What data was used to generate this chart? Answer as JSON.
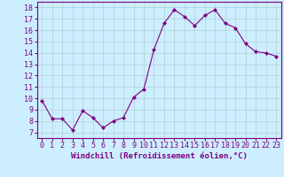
{
  "x": [
    0,
    1,
    2,
    3,
    4,
    5,
    6,
    7,
    8,
    9,
    10,
    11,
    12,
    13,
    14,
    15,
    16,
    17,
    18,
    19,
    20,
    21,
    22,
    23
  ],
  "y": [
    9.8,
    8.2,
    8.2,
    7.2,
    8.9,
    8.3,
    7.4,
    8.0,
    8.3,
    10.1,
    10.8,
    14.3,
    16.6,
    17.8,
    17.2,
    16.4,
    17.3,
    17.8,
    16.6,
    16.2,
    14.8,
    14.1,
    14.0,
    13.7
  ],
  "xlabel": "Windchill (Refroidissement éolien,°C)",
  "ylim": [
    6.5,
    18.5
  ],
  "yticks": [
    7,
    8,
    9,
    10,
    11,
    12,
    13,
    14,
    15,
    16,
    17,
    18
  ],
  "xticks": [
    0,
    1,
    2,
    3,
    4,
    5,
    6,
    7,
    8,
    9,
    10,
    11,
    12,
    13,
    14,
    15,
    16,
    17,
    18,
    19,
    20,
    21,
    22,
    23
  ],
  "line_color": "#800080",
  "marker_color": "#800080",
  "bg_color": "#cceeff",
  "grid_color": "#b0d0d0",
  "xlabel_fontsize": 6.5,
  "tick_fontsize": 6.0
}
